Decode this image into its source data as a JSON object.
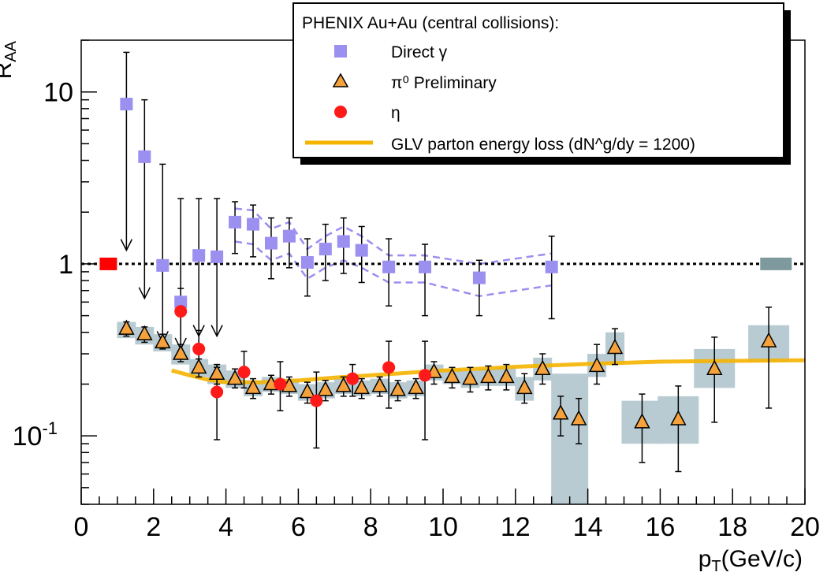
{
  "chart_data": {
    "type": "scatter",
    "title": "",
    "xlabel": {
      "main": "p",
      "sub": "T",
      "unit": "(GeV/c)"
    },
    "ylabel": {
      "main": "R",
      "sub": "AA"
    },
    "xlim": [
      0,
      20
    ],
    "ylim": [
      0.04,
      20
    ],
    "yscale": "log",
    "x_ticks": [
      "0",
      "2",
      "4",
      "6",
      "8",
      "10",
      "12",
      "14",
      "16",
      "18",
      "20"
    ],
    "y_ticks": [
      {
        "value": 10,
        "label": "10"
      },
      {
        "value": 1,
        "label": "1"
      },
      {
        "value": 0.1,
        "label": "10",
        "exponent": "-1"
      }
    ],
    "reference_line": 1,
    "norm_boxes": [
      {
        "name": "direct-photon-normalization",
        "x": 0.75,
        "color": "#ff0000"
      },
      {
        "name": "pi0-normalization",
        "x": 19.2,
        "color": "#7f9a9e"
      }
    ],
    "legend": {
      "header": "PHENIX Au+Au (central collisions):",
      "entries": [
        {
          "label": "Direct γ",
          "marker": "square",
          "color": "#9b8ff0"
        },
        {
          "label": "π⁰ Preliminary",
          "marker": "triangle",
          "color": "#f5a23c"
        },
        {
          "label": "η",
          "marker": "circle",
          "color": "#ff1a1a"
        },
        {
          "label": "GLV parton energy loss (dN^g/dy = 1200)",
          "marker": "line",
          "color": "#f5b400"
        }
      ]
    },
    "series": [
      {
        "name": "Direct γ",
        "marker": "square",
        "color": "#9b8ff0",
        "points": [
          {
            "x": 1.25,
            "y": 8.5,
            "hi": 17,
            "upper_limit": 1.2
          },
          {
            "x": 1.75,
            "y": 4.2,
            "hi": 9,
            "upper_limit": 0.63
          },
          {
            "x": 2.25,
            "y": 0.98,
            "hi": 3.8,
            "upper_limit": 0.35
          },
          {
            "x": 2.75,
            "y": 0.6,
            "hi": 2.4,
            "upper_limit": 0.32
          },
          {
            "x": 3.25,
            "y": 1.12,
            "hi": 2.4,
            "upper_limit": 0.38
          },
          {
            "x": 3.75,
            "y": 1.1,
            "hi": 2.4,
            "upper_limit": 0.38
          },
          {
            "x": 4.25,
            "y": 1.75,
            "hi": 2.3,
            "lo": 1.15
          },
          {
            "x": 4.75,
            "y": 1.7,
            "hi": 2.2,
            "lo": 1.1
          },
          {
            "x": 5.25,
            "y": 1.32,
            "hi": 1.85,
            "lo": 0.82
          },
          {
            "x": 5.75,
            "y": 1.45,
            "hi": 1.85,
            "lo": 0.95
          },
          {
            "x": 6.25,
            "y": 1.02,
            "hi": 1.4,
            "lo": 0.65
          },
          {
            "x": 6.75,
            "y": 1.22,
            "hi": 1.7,
            "lo": 0.8
          },
          {
            "x": 7.25,
            "y": 1.35,
            "hi": 1.85,
            "lo": 0.88
          },
          {
            "x": 7.75,
            "y": 1.2,
            "hi": 1.65,
            "lo": 0.78
          },
          {
            "x": 8.5,
            "y": 0.96,
            "hi": 1.4,
            "lo": 0.57
          },
          {
            "x": 9.5,
            "y": 0.96,
            "hi": 1.3,
            "lo": 0.5
          },
          {
            "x": 11,
            "y": 0.83,
            "hi": 1.05,
            "lo": 0.5
          },
          {
            "x": 13,
            "y": 0.96,
            "hi": 1.45,
            "lo": 0.48
          }
        ]
      },
      {
        "name": "π⁰ Preliminary",
        "marker": "triangle",
        "color": "#f5a23c",
        "points": [
          {
            "x": 1.25,
            "y": 0.42,
            "lo": 0.38,
            "hi": 0.46,
            "sys_lo": 0.37,
            "sys_hi": 0.46
          },
          {
            "x": 1.75,
            "y": 0.39,
            "lo": 0.35,
            "hi": 0.43,
            "sys_lo": 0.34,
            "sys_hi": 0.43
          },
          {
            "x": 2.25,
            "y": 0.35,
            "lo": 0.32,
            "hi": 0.39,
            "sys_lo": 0.31,
            "sys_hi": 0.39
          },
          {
            "x": 2.75,
            "y": 0.3,
            "lo": 0.27,
            "hi": 0.34,
            "sys_lo": 0.26,
            "sys_hi": 0.34
          },
          {
            "x": 3.25,
            "y": 0.25,
            "lo": 0.22,
            "hi": 0.28,
            "sys_lo": 0.22,
            "sys_hi": 0.28
          },
          {
            "x": 3.75,
            "y": 0.23,
            "lo": 0.2,
            "hi": 0.26,
            "sys_lo": 0.2,
            "sys_hi": 0.26
          },
          {
            "x": 4.25,
            "y": 0.215,
            "lo": 0.19,
            "hi": 0.245,
            "sys_lo": 0.19,
            "sys_hi": 0.24
          },
          {
            "x": 4.75,
            "y": 0.19,
            "lo": 0.165,
            "hi": 0.215,
            "sys_lo": 0.17,
            "sys_hi": 0.21
          },
          {
            "x": 5.25,
            "y": 0.2,
            "lo": 0.175,
            "hi": 0.225,
            "sys_lo": 0.18,
            "sys_hi": 0.22
          },
          {
            "x": 5.75,
            "y": 0.195,
            "lo": 0.17,
            "hi": 0.22,
            "sys_lo": 0.175,
            "sys_hi": 0.215
          },
          {
            "x": 6.25,
            "y": 0.18,
            "lo": 0.155,
            "hi": 0.205,
            "sys_lo": 0.16,
            "sys_hi": 0.2
          },
          {
            "x": 6.75,
            "y": 0.185,
            "lo": 0.16,
            "hi": 0.21,
            "sys_lo": 0.165,
            "sys_hi": 0.205
          },
          {
            "x": 7.25,
            "y": 0.195,
            "lo": 0.17,
            "hi": 0.22,
            "sys_lo": 0.175,
            "sys_hi": 0.215
          },
          {
            "x": 7.75,
            "y": 0.19,
            "lo": 0.165,
            "hi": 0.215,
            "sys_lo": 0.17,
            "sys_hi": 0.21
          },
          {
            "x": 8.25,
            "y": 0.195,
            "lo": 0.17,
            "hi": 0.22,
            "sys_lo": 0.175,
            "sys_hi": 0.215
          },
          {
            "x": 8.75,
            "y": 0.185,
            "lo": 0.16,
            "hi": 0.21,
            "sys_lo": 0.165,
            "sys_hi": 0.205
          },
          {
            "x": 9.25,
            "y": 0.19,
            "lo": 0.165,
            "hi": 0.215,
            "sys_lo": 0.17,
            "sys_hi": 0.21
          },
          {
            "x": 9.75,
            "y": 0.235,
            "lo": 0.2,
            "hi": 0.27,
            "sys_lo": 0.21,
            "sys_hi": 0.26
          },
          {
            "x": 10.25,
            "y": 0.22,
            "lo": 0.19,
            "hi": 0.25,
            "sys_lo": 0.2,
            "sys_hi": 0.245
          },
          {
            "x": 10.75,
            "y": 0.215,
            "lo": 0.18,
            "hi": 0.25,
            "sys_lo": 0.19,
            "sys_hi": 0.24
          },
          {
            "x": 11.25,
            "y": 0.22,
            "lo": 0.185,
            "hi": 0.255,
            "sys_lo": 0.195,
            "sys_hi": 0.245
          },
          {
            "x": 11.75,
            "y": 0.22,
            "lo": 0.185,
            "hi": 0.26,
            "sys_lo": 0.195,
            "sys_hi": 0.25
          },
          {
            "x": 12.25,
            "y": 0.19,
            "lo": 0.155,
            "hi": 0.23,
            "sys_lo": 0.16,
            "sys_hi": 0.22
          },
          {
            "x": 12.75,
            "y": 0.245,
            "lo": 0.2,
            "hi": 0.3,
            "sys_lo": 0.21,
            "sys_hi": 0.285
          },
          {
            "x": 13.25,
            "y": 0.135,
            "lo": 0.1,
            "hi": 0.17,
            "sys_lo": 0.04,
            "sys_hi": 0.23
          },
          {
            "x": 13.75,
            "y": 0.125,
            "lo": 0.09,
            "hi": 0.165,
            "sys_lo": 0.04,
            "sys_hi": 0.23
          },
          {
            "x": 14.25,
            "y": 0.255,
            "lo": 0.2,
            "hi": 0.34,
            "sys_lo": 0.22,
            "sys_hi": 0.3
          },
          {
            "x": 14.75,
            "y": 0.325,
            "lo": 0.26,
            "hi": 0.42,
            "sys_lo": 0.26,
            "sys_hi": 0.4
          },
          {
            "x": 15.5,
            "y": 0.12,
            "lo": 0.07,
            "hi": 0.175,
            "sys_lo": 0.09,
            "sys_hi": 0.16
          },
          {
            "x": 16.5,
            "y": 0.125,
            "lo": 0.062,
            "hi": 0.195,
            "sys_lo": 0.09,
            "sys_hi": 0.17
          },
          {
            "x": 17.5,
            "y": 0.245,
            "lo": 0.12,
            "hi": 0.375,
            "sys_lo": 0.19,
            "sys_hi": 0.32
          },
          {
            "x": 19,
            "y": 0.355,
            "lo": 0.145,
            "hi": 0.56,
            "sys_lo": 0.27,
            "sys_hi": 0.44
          }
        ]
      },
      {
        "name": "η",
        "marker": "circle",
        "color": "#ff1a1a",
        "points": [
          {
            "x": 2.75,
            "y": 0.53,
            "lo": 0.29,
            "hi": 0.72
          },
          {
            "x": 3.25,
            "y": 0.32,
            "lo": 0.25,
            "hi": 0.41
          },
          {
            "x": 3.75,
            "y": 0.18,
            "lo": 0.095,
            "hi": 0.25
          },
          {
            "x": 4.5,
            "y": 0.235,
            "lo": 0.19,
            "hi": 0.31
          },
          {
            "x": 5.5,
            "y": 0.2,
            "lo": 0.14,
            "hi": 0.27
          },
          {
            "x": 6.5,
            "y": 0.16,
            "lo": 0.085,
            "hi": 0.235
          },
          {
            "x": 7.5,
            "y": 0.215,
            "lo": 0.17,
            "hi": 0.26
          },
          {
            "x": 8.5,
            "y": 0.25,
            "lo": 0.145,
            "hi": 0.355
          },
          {
            "x": 9.5,
            "y": 0.225,
            "lo": 0.095,
            "hi": 0.355
          }
        ]
      },
      {
        "name": "GLV parton energy loss (dN^g/dy = 1200)",
        "marker": "line",
        "color": "#f5b400",
        "points": [
          {
            "x": 2.5,
            "y": 0.24
          },
          {
            "x": 3,
            "y": 0.225
          },
          {
            "x": 3.5,
            "y": 0.212
          },
          {
            "x": 4,
            "y": 0.205
          },
          {
            "x": 5,
            "y": 0.205
          },
          {
            "x": 6,
            "y": 0.21
          },
          {
            "x": 7,
            "y": 0.218
          },
          {
            "x": 8,
            "y": 0.225
          },
          {
            "x": 10,
            "y": 0.24
          },
          {
            "x": 12,
            "y": 0.252
          },
          {
            "x": 14,
            "y": 0.262
          },
          {
            "x": 16,
            "y": 0.27
          },
          {
            "x": 18,
            "y": 0.273
          },
          {
            "x": 20,
            "y": 0.275
          }
        ]
      }
    ],
    "direct_photon_band": {
      "color": "#9b8ff0",
      "points": [
        {
          "x": 4.25,
          "lo": 1.35,
          "hi": 2.1
        },
        {
          "x": 4.75,
          "lo": 1.3,
          "hi": 2.05
        },
        {
          "x": 5.25,
          "lo": 1.05,
          "hi": 1.6
        },
        {
          "x": 5.75,
          "lo": 1.15,
          "hi": 1.75
        },
        {
          "x": 6.25,
          "lo": 0.82,
          "hi": 1.22
        },
        {
          "x": 6.75,
          "lo": 0.95,
          "hi": 1.45
        },
        {
          "x": 7.25,
          "lo": 1.05,
          "hi": 1.65
        },
        {
          "x": 7.75,
          "lo": 0.95,
          "hi": 1.45
        },
        {
          "x": 8.5,
          "lo": 0.78,
          "hi": 1.12
        },
        {
          "x": 9.5,
          "lo": 0.78,
          "hi": 1.12
        },
        {
          "x": 11,
          "lo": 0.65,
          "hi": 1.0
        },
        {
          "x": 13,
          "lo": 0.75,
          "hi": 1.15
        }
      ]
    }
  }
}
